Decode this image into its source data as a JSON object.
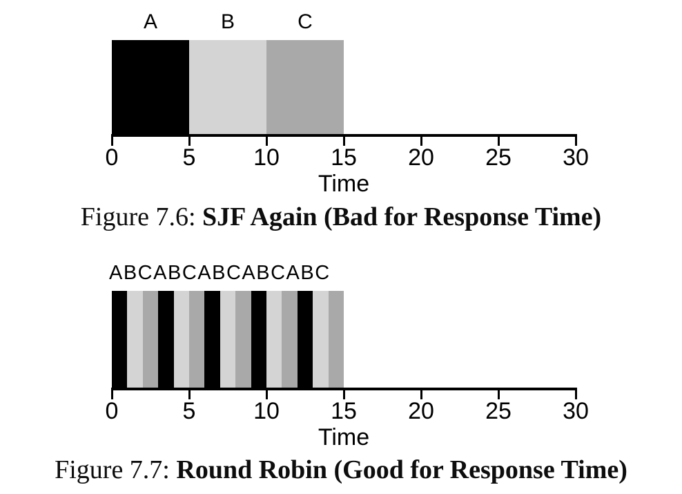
{
  "palette": {
    "A": "#000000",
    "B": "#d4d4d4",
    "C": "#a9a9a9"
  },
  "axis": {
    "xmin": 0,
    "xmax": 30,
    "ticks": [
      0,
      5,
      10,
      15,
      20,
      25,
      30
    ]
  },
  "figures": [
    {
      "name": "sjf",
      "job_labels": [
        "A",
        "B",
        "C"
      ],
      "slices": [
        {
          "job": "A",
          "start": 0,
          "end": 5
        },
        {
          "job": "B",
          "start": 5,
          "end": 10
        },
        {
          "job": "C",
          "start": 10,
          "end": 15
        }
      ],
      "xlabel": "Time",
      "caption": {
        "prefix": "Figure 7.6:",
        "title": "SJF Again (Bad for Response Time)"
      }
    },
    {
      "name": "round-robin",
      "schedule_label": "ABCABCABCABCABC",
      "slices": [
        {
          "job": "A",
          "start": 0,
          "end": 1
        },
        {
          "job": "B",
          "start": 1,
          "end": 2
        },
        {
          "job": "C",
          "start": 2,
          "end": 3
        },
        {
          "job": "A",
          "start": 3,
          "end": 4
        },
        {
          "job": "B",
          "start": 4,
          "end": 5
        },
        {
          "job": "C",
          "start": 5,
          "end": 6
        },
        {
          "job": "A",
          "start": 6,
          "end": 7
        },
        {
          "job": "B",
          "start": 7,
          "end": 8
        },
        {
          "job": "C",
          "start": 8,
          "end": 9
        },
        {
          "job": "A",
          "start": 9,
          "end": 10
        },
        {
          "job": "B",
          "start": 10,
          "end": 11
        },
        {
          "job": "C",
          "start": 11,
          "end": 12
        },
        {
          "job": "A",
          "start": 12,
          "end": 13
        },
        {
          "job": "B",
          "start": 13,
          "end": 14
        },
        {
          "job": "C",
          "start": 14,
          "end": 15
        }
      ],
      "xlabel": "Time",
      "caption": {
        "prefix": "Figure 7.7:",
        "title": "Round Robin (Good for Response Time)"
      }
    }
  ],
  "chart_data": [
    {
      "type": "bar",
      "subtype": "gantt-timeline",
      "title": "Figure 7.6: SJF Again (Bad for Response Time)",
      "xlabel": "Time",
      "xlim": [
        0,
        30
      ],
      "xticks": [
        0,
        5,
        10,
        15,
        20,
        25,
        30
      ],
      "grid": false,
      "legend": "labels above bars",
      "series": [
        {
          "name": "A",
          "color": "#000000",
          "intervals": [
            [
              0,
              5
            ]
          ]
        },
        {
          "name": "B",
          "color": "#d4d4d4",
          "intervals": [
            [
              5,
              10
            ]
          ]
        },
        {
          "name": "C",
          "color": "#a9a9a9",
          "intervals": [
            [
              10,
              15
            ]
          ]
        }
      ]
    },
    {
      "type": "bar",
      "subtype": "gantt-timeline",
      "title": "Figure 7.7: Round Robin (Good for Response Time)",
      "xlabel": "Time",
      "xlim": [
        0,
        30
      ],
      "xticks": [
        0,
        5,
        10,
        15,
        20,
        25,
        30
      ],
      "grid": false,
      "time_quantum": 1,
      "legend": "string ABCABCABCABCABC above bars",
      "series": [
        {
          "name": "A",
          "color": "#000000",
          "intervals": [
            [
              0,
              1
            ],
            [
              3,
              4
            ],
            [
              6,
              7
            ],
            [
              9,
              10
            ],
            [
              12,
              13
            ]
          ]
        },
        {
          "name": "B",
          "color": "#d4d4d4",
          "intervals": [
            [
              1,
              2
            ],
            [
              4,
              5
            ],
            [
              7,
              8
            ],
            [
              10,
              11
            ],
            [
              13,
              14
            ]
          ]
        },
        {
          "name": "C",
          "color": "#a9a9a9",
          "intervals": [
            [
              2,
              3
            ],
            [
              5,
              6
            ],
            [
              8,
              9
            ],
            [
              11,
              12
            ],
            [
              14,
              15
            ]
          ]
        }
      ]
    }
  ]
}
